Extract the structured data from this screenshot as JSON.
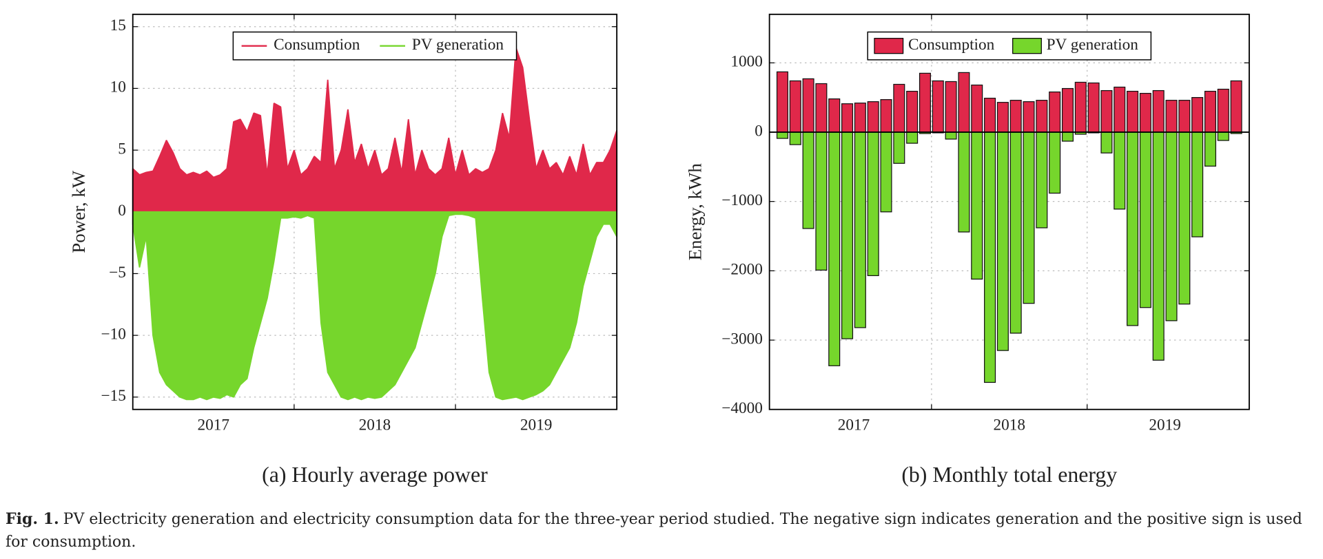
{
  "chart_data": [
    {
      "type": "area",
      "caption": "(a) Hourly average power",
      "ylabel": "Power, kW",
      "ylim": [
        -16,
        16
      ],
      "yticks": [
        {
          "value": -15,
          "label": "−15"
        },
        {
          "value": -10,
          "label": "−10"
        },
        {
          "value": -5,
          "label": "−5"
        },
        0,
        5,
        10,
        15
      ],
      "xlim": [
        0,
        72
      ],
      "xticks": [
        {
          "value": 12,
          "label": "2017"
        },
        {
          "value": 36,
          "label": "2018"
        },
        {
          "value": 60,
          "label": "2019"
        }
      ],
      "xgrid": [
        24,
        48
      ],
      "grid": true,
      "legend": "upper center",
      "legend_marker": "line",
      "series": [
        {
          "name": "Consumption",
          "color": "#e0284a",
          "values": [
            3.5,
            3,
            3.2,
            3.3,
            4.5,
            5.8,
            4.8,
            3.5,
            3,
            3.2,
            3,
            3.3,
            2.8,
            3,
            3.5,
            7.3,
            7.5,
            6.5,
            8,
            7.8,
            3,
            8.8,
            8.5,
            3.5,
            5,
            3,
            3.5,
            4.5,
            4,
            10.7,
            3.5,
            5,
            8.3,
            4,
            5.5,
            3.5,
            5,
            3,
            3.5,
            6,
            3.2,
            7.5,
            3,
            5,
            3.5,
            3,
            3.5,
            6,
            3,
            5,
            3,
            3.5,
            3.2,
            3.5,
            5,
            8,
            6,
            13.3,
            11.7,
            7.5,
            3.5,
            5,
            3.5,
            4,
            3,
            4.5,
            3,
            5.5,
            3,
            4,
            4,
            5,
            6.6
          ]
        },
        {
          "name": "PV generation",
          "color": "#76d62c",
          "values": [
            -1,
            -4.5,
            -2,
            -10,
            -13,
            -14,
            -14.5,
            -15,
            -15.2,
            -15.2,
            -15,
            -15.2,
            -15,
            -15.1,
            -14.8,
            -15,
            -14,
            -13.5,
            -11,
            -9,
            -7,
            -4,
            -0.5,
            -0.5,
            -0.4,
            -0.5,
            -0.3,
            -0.5,
            -9,
            -13,
            -14,
            -15,
            -15.2,
            -15,
            -15.2,
            -15,
            -15.1,
            -15,
            -14.5,
            -14,
            -13,
            -12,
            -11,
            -9,
            -7,
            -5,
            -2,
            -0.3,
            -0.2,
            -0.2,
            -0.3,
            -0.5,
            -7,
            -13,
            -15,
            -15.2,
            -15.1,
            -15,
            -15.2,
            -15,
            -14.8,
            -14.5,
            -14,
            -13,
            -12,
            -11,
            -9,
            -6,
            -4,
            -2,
            -1,
            -1,
            -2
          ]
        }
      ]
    },
    {
      "type": "bar",
      "caption": "(b) Monthly total energy",
      "ylabel": "Energy, kWh",
      "ylim": [
        -4000,
        1700
      ],
      "yticks": [
        {
          "value": -4000,
          "label": "−4000"
        },
        {
          "value": -3000,
          "label": "−3000"
        },
        {
          "value": -2000,
          "label": "−2000"
        },
        {
          "value": -1000,
          "label": "−1000"
        },
        0,
        1000
      ],
      "xlim": [
        -1,
        36
      ],
      "xticks": [
        {
          "value": 5.5,
          "label": "2017"
        },
        {
          "value": 17.5,
          "label": "2018"
        },
        {
          "value": 29.5,
          "label": "2019"
        }
      ],
      "xgrid": [
        11.5,
        23.5
      ],
      "grid": true,
      "legend": "upper center",
      "legend_marker": "box",
      "zero_line": true,
      "series": [
        {
          "name": "Consumption",
          "color": "#e0284a",
          "values": [
            870,
            740,
            770,
            700,
            480,
            410,
            420,
            440,
            470,
            690,
            590,
            850,
            740,
            730,
            860,
            680,
            490,
            430,
            460,
            440,
            460,
            580,
            630,
            720,
            710,
            600,
            650,
            590,
            560,
            600,
            460,
            460,
            500,
            590,
            620,
            740
          ]
        },
        {
          "name": "PV generation",
          "color": "#76d62c",
          "values": [
            -90,
            -180,
            -1390,
            -1990,
            -3370,
            -2980,
            -2820,
            -2070,
            -1150,
            -450,
            -160,
            -20,
            -10,
            -100,
            -1440,
            -2120,
            -3610,
            -3150,
            -2900,
            -2470,
            -1380,
            -880,
            -130,
            -30,
            -10,
            -300,
            -1110,
            -2790,
            -2530,
            -3290,
            -2720,
            -2480,
            -1510,
            -490,
            -120,
            -20
          ]
        }
      ]
    }
  ],
  "figure_caption": {
    "label": "Fig. 1.",
    "text": "PV electricity generation and electricity consumption data for the three-year period studied. The negative sign indicates generation and the positive sign is used for consumption."
  }
}
